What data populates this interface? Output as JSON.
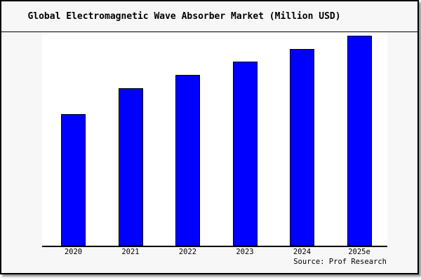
{
  "title": "Global Electromagnetic Wave Absorber Market (Million USD)",
  "source": "Source: Prof Research",
  "chart_data": {
    "type": "bar",
    "title": "Global Electromagnetic Wave Absorber Market (Million USD)",
    "categories": [
      "2020",
      "2021",
      "2022",
      "2023",
      "2024",
      "2025e"
    ],
    "values": [
      188,
      225,
      244,
      263,
      281,
      300
    ],
    "xlabel": "",
    "ylabel": "",
    "ylim": [
      0,
      305
    ],
    "y_axis_ticks_visible": false,
    "grid": false,
    "legend_position": "none",
    "annotation": "Source: Prof Research"
  },
  "colors": {
    "bar_fill": "#0000ff",
    "bar_edge": "#000000",
    "figure_bg": "#f7f7f7",
    "plot_bg": "#ffffff",
    "border": "#000000",
    "text": "#000000"
  }
}
